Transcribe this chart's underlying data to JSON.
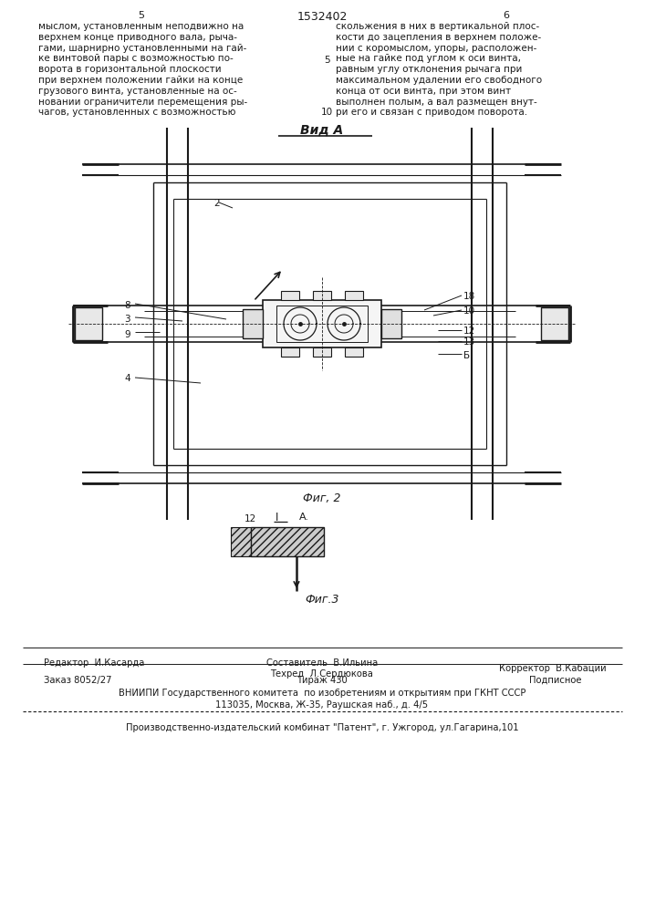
{
  "bg_color": "#ffffff",
  "text_color": "#1a1a1a",
  "line_color": "#1a1a1a",
  "page_number_left": "5",
  "page_number_center": "1532402",
  "page_number_right": "6",
  "text_left_col": [
    "мыслом, установленным неподвижно на",
    "верхнем конце приводного вала, рыча-",
    "гами, шарнирно установленными на гай-",
    "ке винтовой пары с возможностью по-",
    "ворота в горизонтальной плоскости",
    "при верхнем положении гайки на конце",
    "грузового винта, установленные на ос-",
    "новании ограничители перемещения ры-",
    "чагов, установленных с возможностью"
  ],
  "text_right_col": [
    "скольжения в них в вертикальной плос-",
    "кости до зацепления в верхнем положе-",
    "нии с коромыслом, упоры, расположен-",
    "ные на гайке под углом к оси винта,",
    "равным углу отклонения рычага при",
    "максимальном удалении его свободного",
    "конца от оси винта, при этом винт",
    "выполнен полым, а вал размещен внут-",
    "ри его и связан с приводом поворота."
  ],
  "vid_a_label": "Вид A",
  "fig2_label": "Фиг, 2",
  "fig3_label": "Фиг.3",
  "editor_line": "Редактор  И.Касарда",
  "composer_line": "Составитель  В.Ильина",
  "techred_line": "Техред  Л.Сердюкова",
  "corrector_line": "Корректор  В.Кабаций",
  "order_line": "Заказ 8052/27",
  "tirazh_line": "Тираж 430",
  "podpisnoe_line": "Подписное",
  "vnipi_line1": "ВНИИПИ Государственного комитета  по изобретениям и открытиям при ГКНТ СССР",
  "vnipi_line2": "113035, Москва, Ж-35, Раушская наб., д. 4/5",
  "proizv_line": "Производственно-издательский комбинат \"Патент\", г. Ужгород, ул.Гагарина,101"
}
